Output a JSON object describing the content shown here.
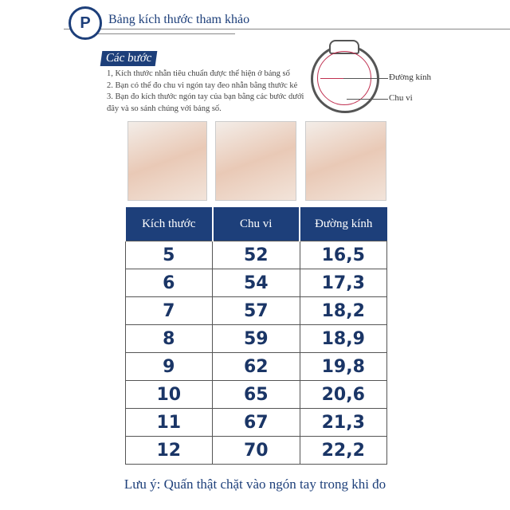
{
  "header": {
    "logo": "P",
    "title": "Bảng kích thước tham khảo"
  },
  "steps": {
    "label": "Các bước",
    "items": [
      "1, Kích thước nhẫn tiêu chuẩn được thể hiện ở bảng số",
      "2. Bạn có thể đo chu vi ngón tay đeo nhẫn bằng thước kẻ",
      "3. Bạn đo kích thước ngón tay của bạn bằng các bước dưới đây và so sánh chúng với bảng số."
    ]
  },
  "diagram": {
    "diameter_label": "Đường kính",
    "circumference_label": "Chu vi"
  },
  "table": {
    "headers": [
      "Kích thước",
      "Chu vi",
      "Đường kính"
    ],
    "rows": [
      [
        "5",
        "52",
        "16,5"
      ],
      [
        "6",
        "54",
        "17,3"
      ],
      [
        "7",
        "57",
        "18,2"
      ],
      [
        "8",
        "59",
        "18,9"
      ],
      [
        "9",
        "62",
        "19,8"
      ],
      [
        "10",
        "65",
        "20,6"
      ],
      [
        "11",
        "67",
        "21,3"
      ],
      [
        "12",
        "70",
        "22,2"
      ]
    ]
  },
  "note": "Lưu ý: Quấn thật chặt vào ngón tay trong khi đo",
  "colors": {
    "accent": "#1d3f7a"
  }
}
